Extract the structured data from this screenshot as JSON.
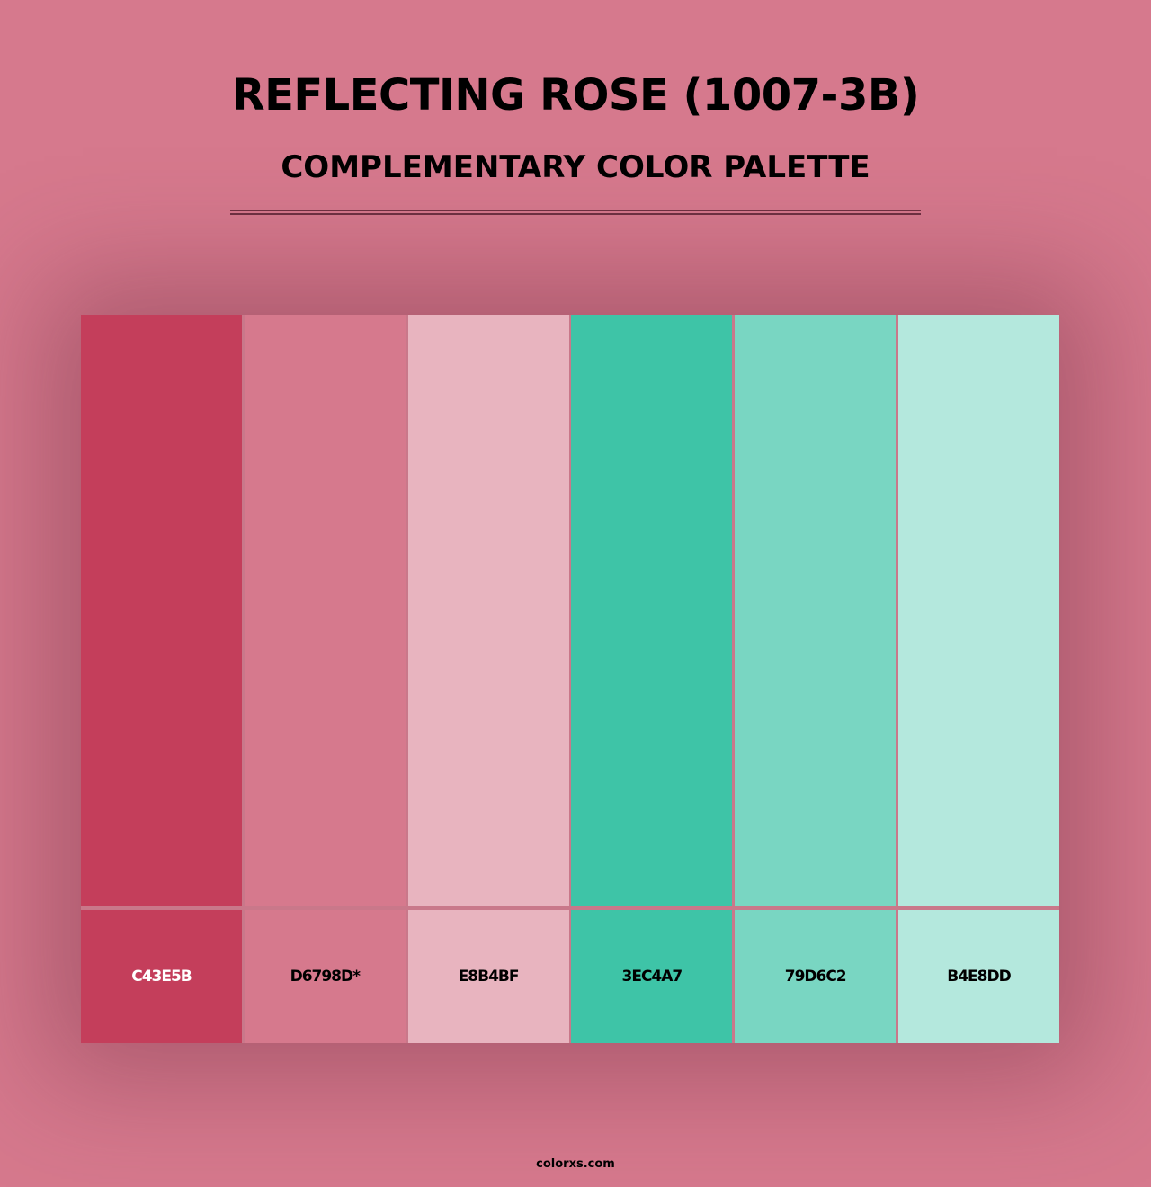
{
  "header": {
    "title": "REFLECTING ROSE (1007-3B)",
    "subtitle": "COMPLEMENTARY COLOR PALETTE"
  },
  "background_color": "#D6798D",
  "palette": [
    {
      "hex": "C43E5B",
      "color": "#C43E5B",
      "text_color": "#FFFFFF"
    },
    {
      "hex": "D6798D*",
      "color": "#D6798D",
      "text_color": "#000000"
    },
    {
      "hex": "E8B4BF",
      "color": "#E8B4BF",
      "text_color": "#000000"
    },
    {
      "hex": "3EC4A7",
      "color": "#3EC4A7",
      "text_color": "#000000"
    },
    {
      "hex": "79D6C2",
      "color": "#79D6C2",
      "text_color": "#000000"
    },
    {
      "hex": "B4E8DD",
      "color": "#B4E8DD",
      "text_color": "#000000"
    }
  ],
  "footer": {
    "site": "colorxs.com"
  }
}
